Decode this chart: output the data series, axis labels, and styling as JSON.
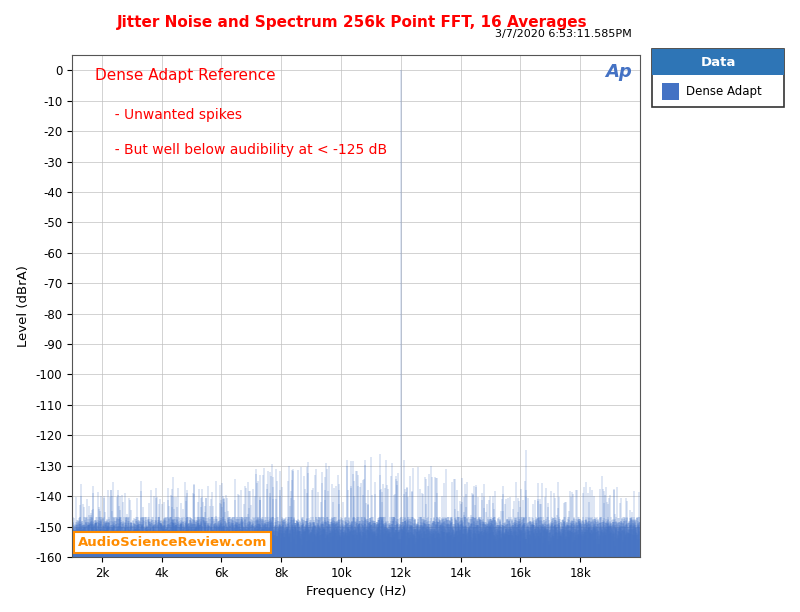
{
  "title": "Jitter Noise and Spectrum 256k Point FFT, 16 Averages",
  "subtitle": "3/7/2020 6:53:11.585PM",
  "xlabel": "Frequency (Hz)",
  "ylabel": "Level (dBrA)",
  "ylim": [
    -160,
    5
  ],
  "xlim": [
    1000,
    20000
  ],
  "yticks": [
    0,
    -10,
    -20,
    -30,
    -40,
    -50,
    -60,
    -70,
    -80,
    -90,
    -100,
    -110,
    -120,
    -130,
    -140,
    -150,
    -160
  ],
  "xticks": [
    2000,
    4000,
    6000,
    8000,
    10000,
    12000,
    14000,
    16000,
    18000
  ],
  "xtick_labels": [
    "2k",
    "4k",
    "6k",
    "8k",
    "10k",
    "12k",
    "14k",
    "16k",
    "18k"
  ],
  "title_color": "#FF0000",
  "subtitle_color": "#000000",
  "annotation_color": "#FF0000",
  "line_color": "#4472C4",
  "noise_floor_mean": -150,
  "noise_floor_std": 2.0,
  "main_spike_freq": 12000,
  "main_spike_level": 0,
  "secondary_spike_freq": 16200,
  "secondary_spike_level": -125,
  "legend_header_color": "#2E75B6",
  "legend_label": "Dense Adapt",
  "annotation_title": "Dense Adapt Reference",
  "annotation_line1": "  - Unwanted spikes",
  "annotation_line2": "  - But well below audibility at < -125 dB",
  "watermark": "AudioScienceReview.com",
  "bg_color": "#FFFFFF",
  "plot_bg_color": "#FFFFFF",
  "grid_color": "#C0C0C0"
}
